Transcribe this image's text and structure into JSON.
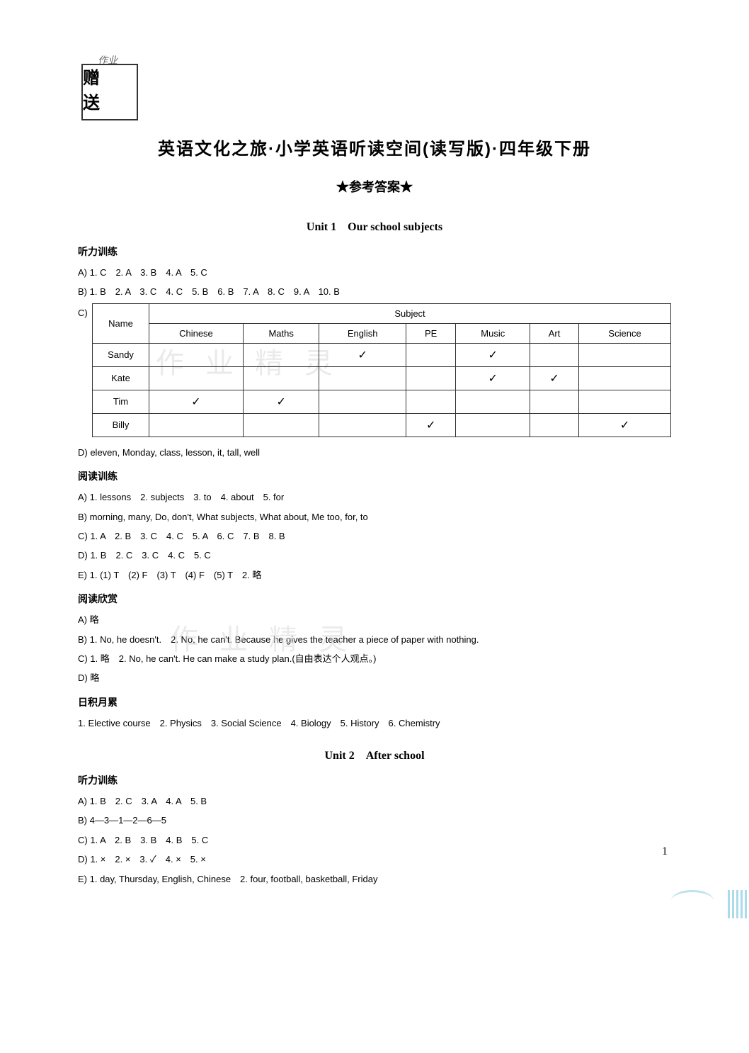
{
  "logo": {
    "brush_text": "作业",
    "box_text": "赠 送"
  },
  "titles": {
    "main": "英语文化之旅·小学英语听读空间(读写版)·四年级下册",
    "sub": "★参考答案★",
    "unit1": "Unit 1　Our school subjects",
    "unit2": "Unit 2　After school"
  },
  "watermarks": {
    "wm1": "作业精灵",
    "wm2": "作业精灵"
  },
  "unit1": {
    "listening": {
      "header": "听力训练",
      "lineA": "A) 1. C　2. A　3. B　4. A　5. C",
      "lineB": "B) 1. B　2. A　3. C　4. C　5. B　6. B　7. A　8. C　9. A　10. B",
      "c_label": "C)",
      "table": {
        "columns": [
          "Name",
          "Subject"
        ],
        "sub_columns": [
          "Chinese",
          "Maths",
          "English",
          "PE",
          "Music",
          "Art",
          "Science"
        ],
        "rows": [
          {
            "name": "Sandy",
            "checks": [
              "",
              "",
              "✓",
              "",
              "✓",
              "",
              ""
            ]
          },
          {
            "name": "Kate",
            "checks": [
              "",
              "",
              "",
              "",
              "✓",
              "✓",
              ""
            ]
          },
          {
            "name": "Tim",
            "checks": [
              "✓",
              "✓",
              "",
              "",
              "",
              "",
              ""
            ]
          },
          {
            "name": "Billy",
            "checks": [
              "",
              "",
              "",
              "✓",
              "",
              "",
              "✓"
            ]
          }
        ]
      },
      "lineD": "D) eleven, Monday, class, lesson, it, tall, well"
    },
    "reading": {
      "header": "阅读训练",
      "lineA": "A) 1. lessons　2. subjects　3. to　4. about　5. for",
      "lineB": "B) morning, many, Do, don't, What subjects, What about, Me too, for, to",
      "lineC": "C) 1. A　2. B　3. C　4. C　5. A　6. C　7. B　8. B",
      "lineD": "D) 1. B　2. C　3. C　4. C　5. C",
      "lineE": "E) 1. (1) T　(2) F　(3) T　(4) F　(5) T　2. 略"
    },
    "appreciation": {
      "header": "阅读欣赏",
      "lineA": "A) 略",
      "lineB": "B) 1. No, he doesn't.　2. No, he can't. Because he gives the teacher a piece of paper with nothing.",
      "lineC": "C) 1. 略　2. No, he can't. He can make a study plan.(自由表达个人观点。)",
      "lineD": "D) 略"
    },
    "daily": {
      "header": "日积月累",
      "line1": "1. Elective course　2. Physics　3. Social Science　4. Biology　5. History　6. Chemistry"
    }
  },
  "unit2": {
    "listening": {
      "header": "听力训练",
      "lineA": "A) 1. B　2. C　3. A　4. A　5. B",
      "lineB": "B) 4—3—1—2—6—5",
      "lineC": "C) 1. A　2. B　3. B　4. B　5. C",
      "lineD": "D) 1. ×　2. ×　3. ✓　4. ×　5. ×",
      "lineE": "E) 1. day, Thursday, English, Chinese　2. four, football, basketball, Friday"
    }
  },
  "page_number": "1"
}
